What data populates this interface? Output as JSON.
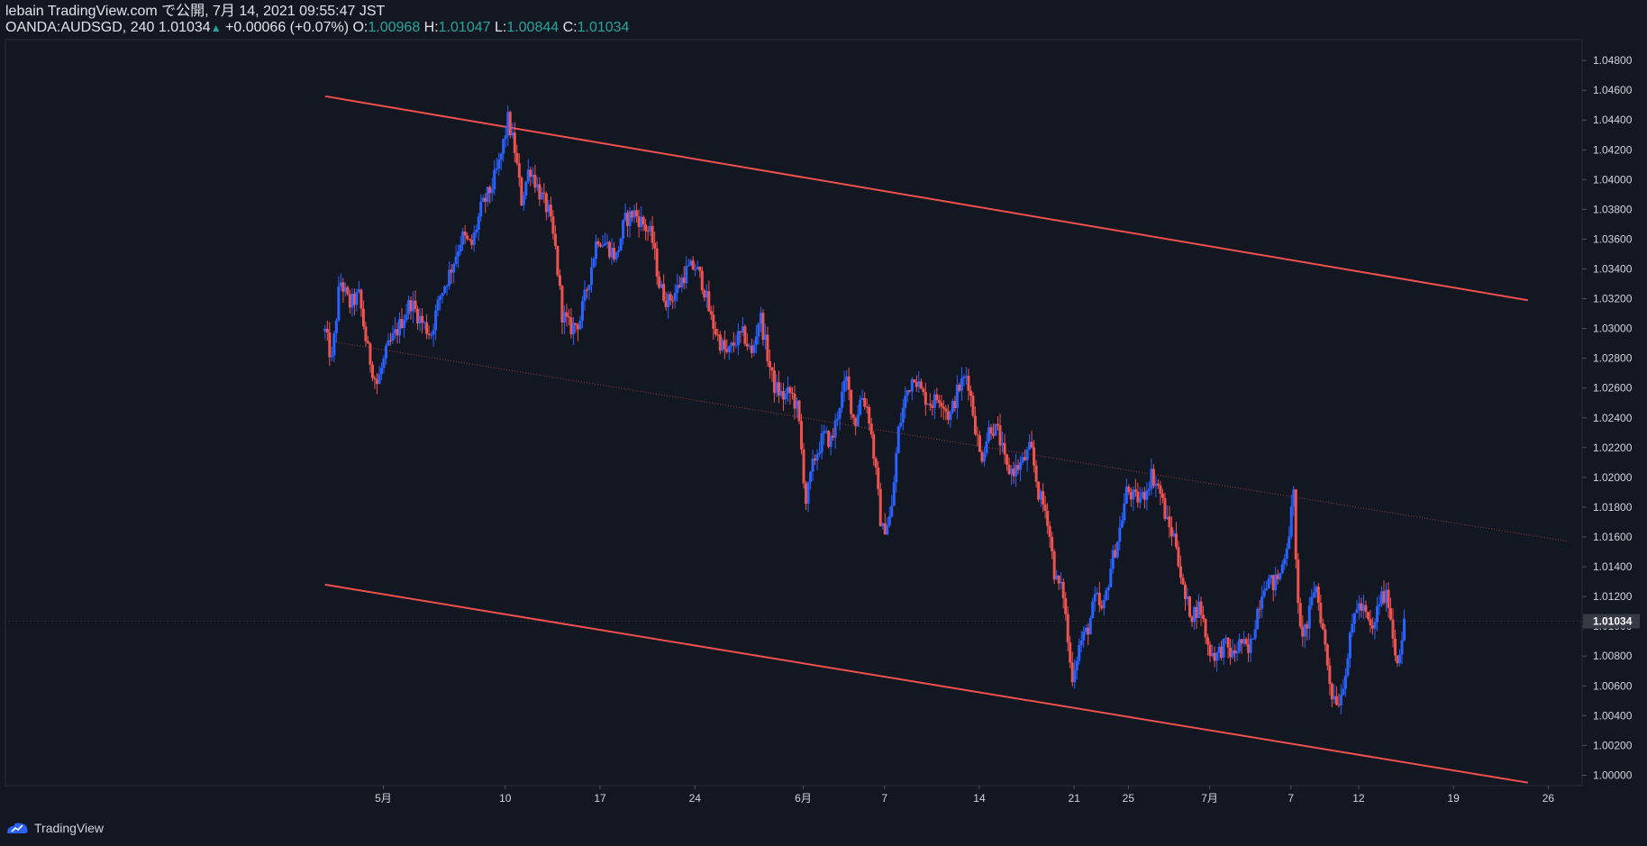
{
  "header": {
    "line1": "lebain TradingView.com で公開, 7月 14, 2021 09:55:47 JST",
    "symbol": "OANDA:AUDSGD, 240",
    "last": "1.01034",
    "change": "+0.00066 (+0.07%)",
    "o_label": "O:",
    "o_value": "1.00968",
    "h_label": "H:",
    "h_value": "1.01047",
    "l_label": "L:",
    "l_value": "1.00844",
    "c_label": "C:",
    "c_value": "1.01034"
  },
  "footer": {
    "brand": "TradingView"
  },
  "colors": {
    "up": "#2962ff",
    "down": "#ef5350",
    "channel": "#f0514f",
    "background": "#131722",
    "text": "#d1d4dc"
  },
  "chart_data": {
    "type": "candlestick",
    "symbol": "OANDA:AUDSGD",
    "interval": "240",
    "current_price": 1.01034,
    "ylim": [
      0.9993,
      1.0494
    ],
    "y_ticks": [
      1.048,
      1.046,
      1.044,
      1.042,
      1.04,
      1.038,
      1.036,
      1.034,
      1.032,
      1.03,
      1.028,
      1.026,
      1.024,
      1.022,
      1.02,
      1.018,
      1.016,
      1.014,
      1.012,
      1.01,
      1.008,
      1.006,
      1.004,
      1.002,
      1.0
    ],
    "y_tick_labels": [
      "1.04800",
      "1.04600",
      "1.04400",
      "1.04200",
      "1.04000",
      "1.03800",
      "1.03600",
      "1.03400",
      "1.03200",
      "1.03000",
      "1.02800",
      "1.02600",
      "1.02400",
      "1.02200",
      "1.02000",
      "1.01800",
      "1.01600",
      "1.01400",
      "1.01200",
      "1.01000",
      "1.00800",
      "1.00600",
      "1.00400",
      "1.00200",
      "1.00000"
    ],
    "x_range_days": [
      -27.9,
      88.5
    ],
    "x_ticks": [
      {
        "label": "5月",
        "day": 0
      },
      {
        "label": "10",
        "day": 9
      },
      {
        "label": "17",
        "day": 16
      },
      {
        "label": "24",
        "day": 23
      },
      {
        "label": "6月",
        "day": 31
      },
      {
        "label": "7",
        "day": 37
      },
      {
        "label": "14",
        "day": 44
      },
      {
        "label": "21",
        "day": 51
      },
      {
        "label": "25",
        "day": 55
      },
      {
        "label": "7月",
        "day": 61
      },
      {
        "label": "7",
        "day": 67
      },
      {
        "label": "12",
        "day": 72
      },
      {
        "label": "19",
        "day": 79
      },
      {
        "label": "26",
        "day": 86
      }
    ],
    "price_path": [
      {
        "day": -4.3,
        "p": 1.0298
      },
      {
        "day": -3.8,
        "p": 1.0278
      },
      {
        "day": -3.2,
        "p": 1.0333
      },
      {
        "day": -2.5,
        "p": 1.0316
      },
      {
        "day": -1.8,
        "p": 1.0322
      },
      {
        "day": -1.2,
        "p": 1.0287
      },
      {
        "day": -0.5,
        "p": 1.0262
      },
      {
        "day": 0.3,
        "p": 1.0286
      },
      {
        "day": 1.2,
        "p": 1.0302
      },
      {
        "day": 2.0,
        "p": 1.0318
      },
      {
        "day": 2.8,
        "p": 1.0305
      },
      {
        "day": 3.5,
        "p": 1.0296
      },
      {
        "day": 4.2,
        "p": 1.0322
      },
      {
        "day": 5.0,
        "p": 1.034
      },
      {
        "day": 5.8,
        "p": 1.0362
      },
      {
        "day": 6.5,
        "p": 1.0355
      },
      {
        "day": 7.2,
        "p": 1.038
      },
      {
        "day": 8.0,
        "p": 1.0395
      },
      {
        "day": 8.6,
        "p": 1.0412
      },
      {
        "day": 9.2,
        "p": 1.044
      },
      {
        "day": 9.7,
        "p": 1.042
      },
      {
        "day": 10.2,
        "p": 1.0386
      },
      {
        "day": 10.8,
        "p": 1.0409
      },
      {
        "day": 11.5,
        "p": 1.0392
      },
      {
        "day": 12.2,
        "p": 1.0378
      },
      {
        "day": 12.7,
        "p": 1.0353
      },
      {
        "day": 13.2,
        "p": 1.031
      },
      {
        "day": 13.8,
        "p": 1.03
      },
      {
        "day": 14.5,
        "p": 1.0305
      },
      {
        "day": 15.1,
        "p": 1.033
      },
      {
        "day": 15.8,
        "p": 1.0362
      },
      {
        "day": 16.5,
        "p": 1.0356
      },
      {
        "day": 17.2,
        "p": 1.0348
      },
      {
        "day": 17.8,
        "p": 1.0372
      },
      {
        "day": 18.5,
        "p": 1.0378
      },
      {
        "day": 19.2,
        "p": 1.037
      },
      {
        "day": 19.8,
        "p": 1.0362
      },
      {
        "day": 20.4,
        "p": 1.0328
      },
      {
        "day": 21.0,
        "p": 1.0318
      },
      {
        "day": 21.6,
        "p": 1.0325
      },
      {
        "day": 22.3,
        "p": 1.0338
      },
      {
        "day": 23.0,
        "p": 1.0342
      },
      {
        "day": 23.6,
        "p": 1.033
      },
      {
        "day": 24.2,
        "p": 1.0306
      },
      {
        "day": 24.8,
        "p": 1.0292
      },
      {
        "day": 25.4,
        "p": 1.0282
      },
      {
        "day": 26.0,
        "p": 1.0292
      },
      {
        "day": 26.6,
        "p": 1.0296
      },
      {
        "day": 27.2,
        "p": 1.0282
      },
      {
        "day": 27.8,
        "p": 1.031
      },
      {
        "day": 28.3,
        "p": 1.0285
      },
      {
        "day": 28.8,
        "p": 1.0262
      },
      {
        "day": 29.5,
        "p": 1.0254
      },
      {
        "day": 30.1,
        "p": 1.0257
      },
      {
        "day": 30.6,
        "p": 1.0245
      },
      {
        "day": 31.2,
        "p": 1.0184
      },
      {
        "day": 31.8,
        "p": 1.0212
      },
      {
        "day": 32.5,
        "p": 1.0228
      },
      {
        "day": 33.1,
        "p": 1.0224
      },
      {
        "day": 33.7,
        "p": 1.025
      },
      {
        "day": 34.2,
        "p": 1.0265
      },
      {
        "day": 34.8,
        "p": 1.0235
      },
      {
        "day": 35.3,
        "p": 1.0256
      },
      {
        "day": 35.8,
        "p": 1.0245
      },
      {
        "day": 36.3,
        "p": 1.0208
      },
      {
        "day": 36.8,
        "p": 1.0163
      },
      {
        "day": 37.5,
        "p": 1.0175
      },
      {
        "day": 38.0,
        "p": 1.023
      },
      {
        "day": 38.6,
        "p": 1.0256
      },
      {
        "day": 39.2,
        "p": 1.027
      },
      {
        "day": 39.8,
        "p": 1.0255
      },
      {
        "day": 40.5,
        "p": 1.025
      },
      {
        "day": 41.1,
        "p": 1.0255
      },
      {
        "day": 41.8,
        "p": 1.024
      },
      {
        "day": 42.4,
        "p": 1.0258
      },
      {
        "day": 43.1,
        "p": 1.027
      },
      {
        "day": 43.6,
        "p": 1.024
      },
      {
        "day": 44.1,
        "p": 1.0212
      },
      {
        "day": 44.8,
        "p": 1.0235
      },
      {
        "day": 45.4,
        "p": 1.023
      },
      {
        "day": 46.0,
        "p": 1.0205
      },
      {
        "day": 46.6,
        "p": 1.0205
      },
      {
        "day": 47.2,
        "p": 1.021
      },
      {
        "day": 47.8,
        "p": 1.022
      },
      {
        "day": 48.4,
        "p": 1.0188
      },
      {
        "day": 49.0,
        "p": 1.0175
      },
      {
        "day": 49.6,
        "p": 1.0132
      },
      {
        "day": 50.2,
        "p": 1.0122
      },
      {
        "day": 50.8,
        "p": 1.0065
      },
      {
        "day": 51.4,
        "p": 1.0088
      },
      {
        "day": 52.0,
        "p": 1.0098
      },
      {
        "day": 52.6,
        "p": 1.012
      },
      {
        "day": 53.1,
        "p": 1.0108
      },
      {
        "day": 53.7,
        "p": 1.014
      },
      {
        "day": 54.3,
        "p": 1.0162
      },
      {
        "day": 54.9,
        "p": 1.0192
      },
      {
        "day": 55.5,
        "p": 1.0185
      },
      {
        "day": 56.1,
        "p": 1.0187
      },
      {
        "day": 56.7,
        "p": 1.0202
      },
      {
        "day": 57.3,
        "p": 1.0192
      },
      {
        "day": 57.9,
        "p": 1.0168
      },
      {
        "day": 58.5,
        "p": 1.0158
      },
      {
        "day": 59.1,
        "p": 1.012
      },
      {
        "day": 59.7,
        "p": 1.0108
      },
      {
        "day": 60.3,
        "p": 1.0114
      },
      {
        "day": 60.9,
        "p": 1.0085
      },
      {
        "day": 61.5,
        "p": 1.008
      },
      {
        "day": 62.1,
        "p": 1.0088
      },
      {
        "day": 62.7,
        "p": 1.008
      },
      {
        "day": 63.3,
        "p": 1.009
      },
      {
        "day": 63.9,
        "p": 1.0081
      },
      {
        "day": 64.5,
        "p": 1.011
      },
      {
        "day": 65.1,
        "p": 1.0132
      },
      {
        "day": 65.7,
        "p": 1.0128
      },
      {
        "day": 66.2,
        "p": 1.0135
      },
      {
        "day": 66.8,
        "p": 1.016
      },
      {
        "day": 67.2,
        "p": 1.0188
      },
      {
        "day": 67.6,
        "p": 1.0095
      },
      {
        "day": 68.2,
        "p": 1.01
      },
      {
        "day": 68.8,
        "p": 1.013
      },
      {
        "day": 69.4,
        "p": 1.0095
      },
      {
        "day": 70.0,
        "p": 1.0055
      },
      {
        "day": 70.6,
        "p": 1.005
      },
      {
        "day": 71.2,
        "p": 1.008
      },
      {
        "day": 71.8,
        "p": 1.0115
      },
      {
        "day": 72.4,
        "p": 1.011
      },
      {
        "day": 73.0,
        "p": 1.0095
      },
      {
        "day": 73.6,
        "p": 1.012
      },
      {
        "day": 74.2,
        "p": 1.0118
      },
      {
        "day": 74.8,
        "p": 1.0075
      },
      {
        "day": 75.4,
        "p": 1.0103
      }
    ],
    "channel": {
      "upper": [
        {
          "day": -4.3,
          "p": 1.0456
        },
        {
          "day": 84.5,
          "p": 1.0319
        }
      ],
      "lower": [
        {
          "day": -4.3,
          "p": 1.0128
        },
        {
          "day": 84.5,
          "p": 0.9995
        }
      ],
      "middle_dotted": [
        {
          "day": -4.3,
          "p": 1.0292
        },
        {
          "day": 87.5,
          "p": 1.0157
        }
      ]
    }
  }
}
